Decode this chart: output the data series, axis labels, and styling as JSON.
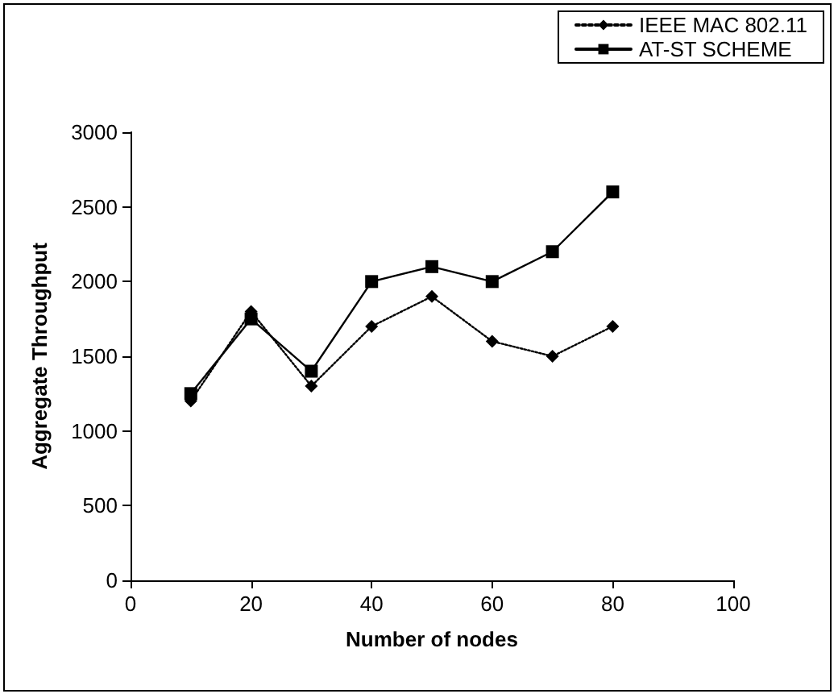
{
  "chart_data": {
    "type": "line",
    "xlabel": "Number of nodes",
    "ylabel": "Aggregate Throughput",
    "x": [
      10,
      20,
      30,
      40,
      50,
      60,
      70,
      80
    ],
    "series": [
      {
        "name": "IEEE MAC 802.11",
        "color": "#000000",
        "values": [
          1200,
          1800,
          1300,
          1700,
          1900,
          1600,
          1500,
          1700
        ],
        "marker": "diamond",
        "line_style": "dotted"
      },
      {
        "name": "AT-ST SCHEME",
        "color": "#000000",
        "values": [
          1250,
          1750,
          1400,
          2000,
          2100,
          2000,
          2200,
          2600
        ],
        "marker": "square",
        "line_style": "solid"
      }
    ],
    "xlim": [
      0,
      100
    ],
    "xticks": [
      0,
      20,
      40,
      60,
      80,
      100
    ],
    "ylim": [
      0,
      3000
    ],
    "yticks": [
      0,
      500,
      1000,
      1500,
      2000,
      2500,
      3000
    ],
    "grid": false,
    "legend": "top right"
  }
}
